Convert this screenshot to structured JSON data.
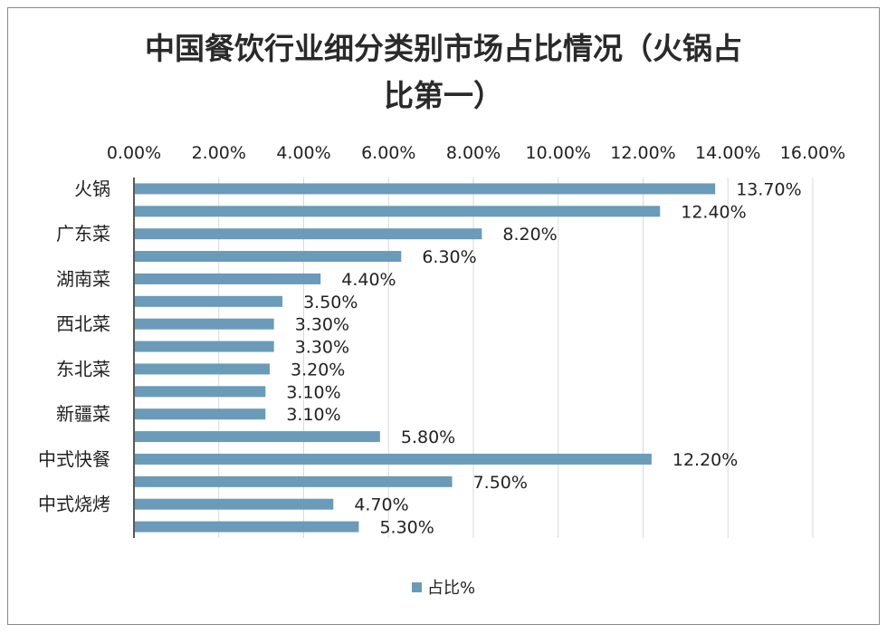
{
  "chart_data": {
    "type": "bar",
    "orientation": "horizontal",
    "title": "中国餐饮行业细分类别市场占比情况（火锅占比第一）",
    "title_lines": [
      "中国餐饮行业细分类别市场占比情况（火锅占",
      "比第一）"
    ],
    "categories": [
      "火锅",
      "",
      "广东菜",
      "",
      "湖南菜",
      "",
      "西北菜",
      "",
      "东北菜",
      "",
      "新疆菜",
      "",
      "中式快餐",
      "",
      "中式烧烤",
      ""
    ],
    "series": [
      {
        "name": "占比%",
        "values": [
          13.7,
          12.4,
          8.2,
          6.3,
          4.4,
          3.5,
          3.3,
          3.3,
          3.2,
          3.1,
          3.1,
          5.8,
          12.2,
          7.5,
          4.7,
          5.3
        ]
      }
    ],
    "data_labels": [
      "13.70%",
      "12.40%",
      "8.20%",
      "6.30%",
      "4.40%",
      "3.50%",
      "3.30%",
      "3.30%",
      "3.20%",
      "3.10%",
      "3.10%",
      "5.80%",
      "12.20%",
      "7.50%",
      "4.70%",
      "5.30%"
    ],
    "x_ticks": [
      "0.00%",
      "2.00%",
      "4.00%",
      "6.00%",
      "8.00%",
      "10.00%",
      "12.00%",
      "14.00%",
      "16.00%"
    ],
    "xlim": [
      0,
      16
    ],
    "xaxis_position": "top",
    "grid": true,
    "legend": "bottom",
    "xlabel": "",
    "ylabel": "",
    "color": "#6a9bb8"
  }
}
